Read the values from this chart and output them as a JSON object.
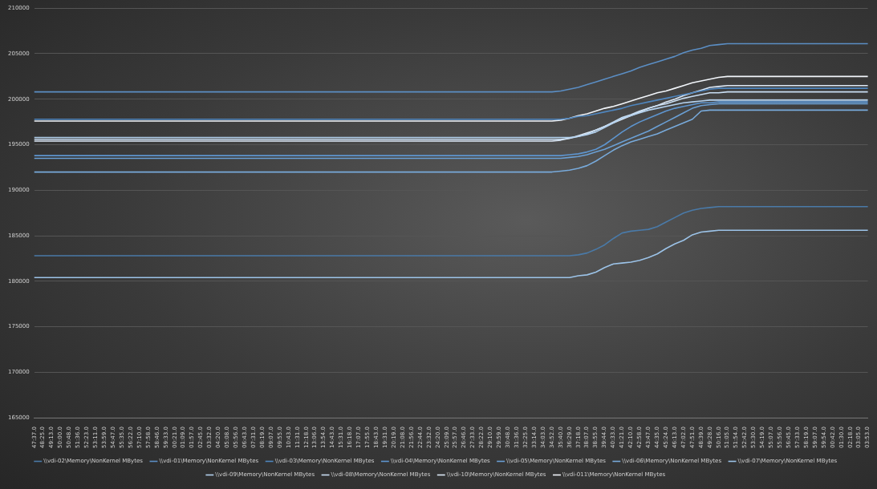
{
  "chart_data": {
    "type": "line",
    "legend": "bottom",
    "grid": "y",
    "marker": "none",
    "line_style": "solid",
    "categories": [
      "47:37.0",
      "48:25.0",
      "49:13.0",
      "50:00.0",
      "50:48.0",
      "51:36.0",
      "52:23.0",
      "53:11.0",
      "53:59.0",
      "54:47.0",
      "55:35.0",
      "56:22.0",
      "57:10.0",
      "57:58.0",
      "58:46.0",
      "59:33.0",
      "00:21.0",
      "01:09.0",
      "01:57.0",
      "02:45.0",
      "03:32.0",
      "04:20.0",
      "05:08.0",
      "05:56.0",
      "06:43.0",
      "07:31.0",
      "08:19.0",
      "09:07.0",
      "09:55.0",
      "10:43.0",
      "11:31.0",
      "12:18.0",
      "13:06.0",
      "13:54.0",
      "14:43.0",
      "15:31.0",
      "16:18.0",
      "17:07.0",
      "17:55.0",
      "18:43.0",
      "19:31.0",
      "20:19.0",
      "21:08.0",
      "21:56.0",
      "22:44.0",
      "23:32.0",
      "24:20.0",
      "25:09.0",
      "25:57.0",
      "26:46.0",
      "27:33.0",
      "28:22.0",
      "29:10.0",
      "29:59.0",
      "30:48.0",
      "31:36.0",
      "32:25.0",
      "33:14.0",
      "34:03.0",
      "34:52.0",
      "35:40.0",
      "36:29.0",
      "37:18.0",
      "38:07.0",
      "38:55.0",
      "39:44.0",
      "40:33.0",
      "41:21.0",
      "42:10.0",
      "42:58.0",
      "43:47.0",
      "44:35.0",
      "45:24.0",
      "46:13.0",
      "47:02.0",
      "47:51.0",
      "48:39.0",
      "49:28.0",
      "50:16.0",
      "51:05.0",
      "51:54.0",
      "52:42.0",
      "53:30.0",
      "54:19.0",
      "55:07.0",
      "55:56.0",
      "56:45.0",
      "57:33.0",
      "58:19.0",
      "59:07.0",
      "59:54.0",
      "00:42.0",
      "01:30.0",
      "02:18.0",
      "03:05.0",
      "03:53.0"
    ],
    "ylim": [
      165000,
      210000
    ],
    "yticks": [
      165000,
      170000,
      175000,
      180000,
      185000,
      190000,
      195000,
      200000,
      205000,
      210000
    ],
    "series": [
      {
        "name": "\\\\vdi-02\\Memory\\NonKernel MBytes",
        "color": "#4a7aa8",
        "values": [
          182800,
          182800,
          182800,
          182800,
          182800,
          182800,
          182800,
          182800,
          182800,
          182800,
          182800,
          182800,
          182800,
          182800,
          182800,
          182800,
          182800,
          182800,
          182800,
          182800,
          182800,
          182800,
          182800,
          182800,
          182800,
          182800,
          182800,
          182800,
          182800,
          182800,
          182800,
          182800,
          182800,
          182800,
          182800,
          182800,
          182800,
          182800,
          182800,
          182800,
          182800,
          182800,
          182800,
          182800,
          182800,
          182800,
          182800,
          182800,
          182800,
          182800,
          182800,
          182800,
          182800,
          182800,
          182800,
          182800,
          182800,
          182800,
          182800,
          182800,
          182800,
          182800,
          182900,
          183100,
          183500,
          184000,
          184700,
          185300,
          185500,
          185600,
          185700,
          186000,
          186500,
          187000,
          187500,
          187800,
          188000,
          188100,
          188200,
          188200,
          188200,
          188200,
          188200,
          188200,
          188200,
          188200,
          188200,
          188200,
          188200,
          188200,
          188200,
          188200,
          188200,
          188200,
          188200,
          188200
        ]
      },
      {
        "name": "\\\\vdi-01\\Memory\\NonKernel MBytes",
        "color": "#5b8ec4",
        "values": [
          200800,
          200800,
          200800,
          200800,
          200800,
          200800,
          200800,
          200800,
          200800,
          200800,
          200800,
          200800,
          200800,
          200800,
          200800,
          200800,
          200800,
          200800,
          200800,
          200800,
          200800,
          200800,
          200800,
          200800,
          200800,
          200800,
          200800,
          200800,
          200800,
          200800,
          200800,
          200800,
          200800,
          200800,
          200800,
          200800,
          200800,
          200800,
          200800,
          200800,
          200800,
          200800,
          200800,
          200800,
          200800,
          200800,
          200800,
          200800,
          200800,
          200800,
          200800,
          200800,
          200800,
          200800,
          200800,
          200800,
          200800,
          200800,
          200800,
          200800,
          200900,
          201100,
          201300,
          201600,
          201900,
          202200,
          202500,
          202800,
          203100,
          203500,
          203800,
          204100,
          204400,
          204700,
          205100,
          205400,
          205600,
          205900,
          206000,
          206100,
          206100,
          206100,
          206100,
          206100,
          206100,
          206100,
          206100,
          206100,
          206100,
          206100,
          206100,
          206100,
          206100,
          206100,
          206100,
          206100
        ]
      },
      {
        "name": "\\\\vdi-03\\Memory\\NonKernel MBytes",
        "color": "#4f86bf",
        "values": [
          197800,
          197800,
          197800,
          197800,
          197800,
          197800,
          197800,
          197800,
          197800,
          197800,
          197800,
          197800,
          197800,
          197800,
          197800,
          197800,
          197800,
          197800,
          197800,
          197800,
          197800,
          197800,
          197800,
          197800,
          197800,
          197800,
          197800,
          197800,
          197800,
          197800,
          197800,
          197800,
          197800,
          197800,
          197800,
          197800,
          197800,
          197800,
          197800,
          197800,
          197800,
          197800,
          197800,
          197800,
          197800,
          197800,
          197800,
          197800,
          197800,
          197800,
          197800,
          197800,
          197800,
          197800,
          197800,
          197800,
          197800,
          197800,
          197800,
          197800,
          197800,
          197900,
          198100,
          198200,
          198400,
          198600,
          198800,
          199000,
          199300,
          199500,
          199700,
          199900,
          200100,
          200300,
          200500,
          200700,
          200900,
          201100,
          201200,
          201200,
          201200,
          201200,
          201200,
          201200,
          201200,
          201200,
          201200,
          201200,
          201200,
          201200,
          201200,
          201200,
          201200,
          201200,
          201200,
          201200
        ]
      },
      {
        "name": "\\\\vdi-04\\Memory\\NonKernel MBytes",
        "color": "#5e95cf",
        "values": [
          193800,
          193800,
          193800,
          193800,
          193800,
          193800,
          193800,
          193800,
          193800,
          193800,
          193800,
          193800,
          193800,
          193800,
          193800,
          193800,
          193800,
          193800,
          193800,
          193800,
          193800,
          193800,
          193800,
          193800,
          193800,
          193800,
          193800,
          193800,
          193800,
          193800,
          193800,
          193800,
          193800,
          193800,
          193800,
          193800,
          193800,
          193800,
          193800,
          193800,
          193800,
          193800,
          193800,
          193800,
          193800,
          193800,
          193800,
          193800,
          193800,
          193800,
          193800,
          193800,
          193800,
          193800,
          193800,
          193800,
          193800,
          193800,
          193800,
          193800,
          193800,
          193900,
          194000,
          194200,
          194500,
          195000,
          195700,
          196400,
          197000,
          197500,
          197900,
          198300,
          198700,
          199000,
          199200,
          199400,
          199600,
          199600,
          199700,
          199700,
          199700,
          199700,
          199700,
          199700,
          199700,
          199700,
          199700,
          199700,
          199700,
          199700,
          199700,
          199700,
          199700,
          199700,
          199700,
          199700
        ]
      },
      {
        "name": "\\\\vdi-05\\Memory\\NonKernel MBytes",
        "color": "#6a9fd4",
        "values": [
          193500,
          193500,
          193500,
          193500,
          193500,
          193500,
          193500,
          193500,
          193500,
          193500,
          193500,
          193500,
          193500,
          193500,
          193500,
          193500,
          193500,
          193500,
          193500,
          193500,
          193500,
          193500,
          193500,
          193500,
          193500,
          193500,
          193500,
          193500,
          193500,
          193500,
          193500,
          193500,
          193500,
          193500,
          193500,
          193500,
          193500,
          193500,
          193500,
          193500,
          193500,
          193500,
          193500,
          193500,
          193500,
          193500,
          193500,
          193500,
          193500,
          193500,
          193500,
          193500,
          193500,
          193500,
          193500,
          193500,
          193500,
          193500,
          193500,
          193500,
          193500,
          193600,
          193700,
          193900,
          194200,
          194500,
          194900,
          195300,
          195700,
          196100,
          196500,
          197000,
          197500,
          198000,
          198500,
          199000,
          199300,
          199400,
          199500,
          199500,
          199500,
          199500,
          199500,
          199500,
          199500,
          199500,
          199500,
          199500,
          199500,
          199500,
          199500,
          199500,
          199500,
          199500,
          199500,
          199500
        ]
      },
      {
        "name": "\\\\vdi-06\\Memory\\NonKernel MBytes",
        "color": "#78aadb",
        "values": [
          192000,
          192000,
          192000,
          192000,
          192000,
          192000,
          192000,
          192000,
          192000,
          192000,
          192000,
          192000,
          192000,
          192000,
          192000,
          192000,
          192000,
          192000,
          192000,
          192000,
          192000,
          192000,
          192000,
          192000,
          192000,
          192000,
          192000,
          192000,
          192000,
          192000,
          192000,
          192000,
          192000,
          192000,
          192000,
          192000,
          192000,
          192000,
          192000,
          192000,
          192000,
          192000,
          192000,
          192000,
          192000,
          192000,
          192000,
          192000,
          192000,
          192000,
          192000,
          192000,
          192000,
          192000,
          192000,
          192000,
          192000,
          192000,
          192000,
          192000,
          192100,
          192200,
          192400,
          192700,
          193200,
          193800,
          194400,
          194900,
          195300,
          195600,
          195900,
          196200,
          196600,
          197000,
          197400,
          197800,
          198700,
          198800,
          198800,
          198800,
          198800,
          198800,
          198800,
          198800,
          198800,
          198800,
          198800,
          198800,
          198800,
          198800,
          198800,
          198800,
          198800,
          198800,
          198800,
          198800
        ]
      },
      {
        "name": "\\\\vdi-07\\Memory\\NonKernel MBytes",
        "color": "#9cc3e8",
        "values": [
          180400,
          180400,
          180400,
          180400,
          180400,
          180400,
          180400,
          180400,
          180400,
          180400,
          180400,
          180400,
          180400,
          180400,
          180400,
          180400,
          180400,
          180400,
          180400,
          180400,
          180400,
          180400,
          180400,
          180400,
          180400,
          180400,
          180400,
          180400,
          180400,
          180400,
          180400,
          180400,
          180400,
          180400,
          180400,
          180400,
          180400,
          180400,
          180400,
          180400,
          180400,
          180400,
          180400,
          180400,
          180400,
          180400,
          180400,
          180400,
          180400,
          180400,
          180400,
          180400,
          180400,
          180400,
          180400,
          180400,
          180400,
          180400,
          180400,
          180400,
          180400,
          180400,
          180600,
          180700,
          181000,
          181500,
          181900,
          182000,
          182100,
          182300,
          182600,
          183000,
          183600,
          184100,
          184500,
          185100,
          185400,
          185500,
          185600,
          185600,
          185600,
          185600,
          185600,
          185600,
          185600,
          185600,
          185600,
          185600,
          185600,
          185600,
          185600,
          185600,
          185600,
          185600,
          185600,
          185600
        ]
      },
      {
        "name": "\\\\vdi-09\\Memory\\NonKernel MBytes",
        "color": "#b3d1ee",
        "values": [
          195800,
          195800,
          195800,
          195800,
          195800,
          195800,
          195800,
          195800,
          195800,
          195800,
          195800,
          195800,
          195800,
          195800,
          195800,
          195800,
          195800,
          195800,
          195800,
          195800,
          195800,
          195800,
          195800,
          195800,
          195800,
          195800,
          195800,
          195800,
          195800,
          195800,
          195800,
          195800,
          195800,
          195800,
          195800,
          195800,
          195800,
          195800,
          195800,
          195800,
          195800,
          195800,
          195800,
          195800,
          195800,
          195800,
          195800,
          195800,
          195800,
          195800,
          195800,
          195800,
          195800,
          195800,
          195800,
          195800,
          195800,
          195800,
          195800,
          195800,
          195800,
          195800,
          195900,
          196100,
          196400,
          196900,
          197400,
          197900,
          198200,
          198500,
          198800,
          199000,
          199200,
          199400,
          199600,
          199700,
          199800,
          199900,
          199900,
          199900,
          199900,
          199900,
          199900,
          199900,
          199900,
          199900,
          199900,
          199900,
          199900,
          199900,
          199900,
          199900,
          199900,
          199900,
          199900,
          199900
        ]
      },
      {
        "name": "\\\\vdi-08\\Memory\\NonKernel MBytes",
        "color": "#c9def3",
        "values": [
          195600,
          195600,
          195600,
          195600,
          195600,
          195600,
          195600,
          195600,
          195600,
          195600,
          195600,
          195600,
          195600,
          195600,
          195600,
          195600,
          195600,
          195600,
          195600,
          195600,
          195600,
          195600,
          195600,
          195600,
          195600,
          195600,
          195600,
          195600,
          195600,
          195600,
          195600,
          195600,
          195600,
          195600,
          195600,
          195600,
          195600,
          195600,
          195600,
          195600,
          195600,
          195600,
          195600,
          195600,
          195600,
          195600,
          195600,
          195600,
          195600,
          195600,
          195600,
          195600,
          195600,
          195600,
          195600,
          195600,
          195600,
          195600,
          195600,
          195600,
          195600,
          195700,
          195900,
          196200,
          196600,
          197000,
          197500,
          198000,
          198300,
          198700,
          199000,
          199300,
          199500,
          199800,
          200100,
          200300,
          200500,
          200700,
          200700,
          200800,
          200800,
          200800,
          200800,
          200800,
          200800,
          200800,
          200800,
          200800,
          200800,
          200800,
          200800,
          200800,
          200800,
          200800,
          200800,
          200800
        ]
      },
      {
        "name": "\\\\vdi-10\\Memory\\NonKernel MBytes",
        "color": "#dde9f7",
        "values": [
          195400,
          195400,
          195400,
          195400,
          195400,
          195400,
          195400,
          195400,
          195400,
          195400,
          195400,
          195400,
          195400,
          195400,
          195400,
          195400,
          195400,
          195400,
          195400,
          195400,
          195400,
          195400,
          195400,
          195400,
          195400,
          195400,
          195400,
          195400,
          195400,
          195400,
          195400,
          195400,
          195400,
          195400,
          195400,
          195400,
          195400,
          195400,
          195400,
          195400,
          195400,
          195400,
          195400,
          195400,
          195400,
          195400,
          195400,
          195400,
          195400,
          195400,
          195400,
          195400,
          195400,
          195400,
          195400,
          195400,
          195400,
          195400,
          195400,
          195400,
          195500,
          195700,
          196000,
          196300,
          196600,
          197000,
          197400,
          197800,
          198200,
          198600,
          199000,
          199300,
          199700,
          200000,
          200400,
          200700,
          201000,
          201300,
          201400,
          201500,
          201500,
          201500,
          201500,
          201500,
          201500,
          201500,
          201500,
          201500,
          201500,
          201500,
          201500,
          201500,
          201500,
          201500,
          201500,
          201500
        ]
      },
      {
        "name": "\\\\vdi-011\\Memory\\NonKernel MBytes",
        "color": "#f2f6fb",
        "values": [
          197600,
          197600,
          197600,
          197600,
          197600,
          197600,
          197600,
          197600,
          197600,
          197600,
          197600,
          197600,
          197600,
          197600,
          197600,
          197600,
          197600,
          197600,
          197600,
          197600,
          197600,
          197600,
          197600,
          197600,
          197600,
          197600,
          197600,
          197600,
          197600,
          197600,
          197600,
          197600,
          197600,
          197600,
          197600,
          197600,
          197600,
          197600,
          197600,
          197600,
          197600,
          197600,
          197600,
          197600,
          197600,
          197600,
          197600,
          197600,
          197600,
          197600,
          197600,
          197600,
          197600,
          197600,
          197600,
          197600,
          197600,
          197600,
          197600,
          197600,
          197700,
          197900,
          198200,
          198400,
          198700,
          199000,
          199200,
          199500,
          199800,
          200100,
          200400,
          200700,
          200900,
          201200,
          201500,
          201800,
          202000,
          202200,
          202400,
          202500,
          202500,
          202500,
          202500,
          202500,
          202500,
          202500,
          202500,
          202500,
          202500,
          202500,
          202500,
          202500,
          202500,
          202500,
          202500,
          202500
        ]
      }
    ]
  }
}
